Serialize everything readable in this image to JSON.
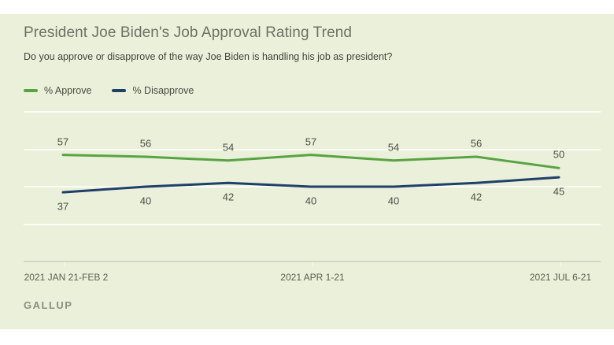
{
  "header": {
    "title": "President Joe Biden's Job Approval Rating Trend",
    "subtitle": "Do you approve or disapprove of the way Joe Biden is handling his job as president?"
  },
  "legend": {
    "items": [
      {
        "label": "% Approve",
        "color": "#58a443"
      },
      {
        "label": "% Disapprove",
        "color": "#1f4069"
      }
    ]
  },
  "chart_data": {
    "type": "line",
    "title": "President Joe Biden's Job Approval Rating Trend",
    "subtitle": "Do you approve or disapprove of the way Joe Biden is handling his job as president?",
    "x_tick_labels": [
      "2021 JAN 21-FEB 2",
      "2021 APR 1-21",
      "2021 JUL 6-21"
    ],
    "x_tick_point_indexes": [
      0,
      3,
      6
    ],
    "num_points": 7,
    "series": [
      {
        "name": "% Approve",
        "color": "#58a443",
        "values": [
          57,
          56,
          54,
          57,
          54,
          56,
          50
        ],
        "label_side": "above"
      },
      {
        "name": "% Disapprove",
        "color": "#1f4069",
        "values": [
          37,
          40,
          42,
          40,
          40,
          42,
          45
        ],
        "label_side": "below"
      }
    ],
    "ylim": [
      0,
      80
    ],
    "gridline_values": [
      20,
      40,
      60,
      80
    ],
    "grid": true,
    "legend_position": "top-left"
  },
  "footer": {
    "brand": "GALLUP"
  },
  "colors": {
    "panel_background": "#eaf0da",
    "approve_line": "#58a443",
    "disapprove_line": "#1f4069",
    "gridline": "#fbfdf6",
    "axis_line": "#d4d8c6"
  }
}
